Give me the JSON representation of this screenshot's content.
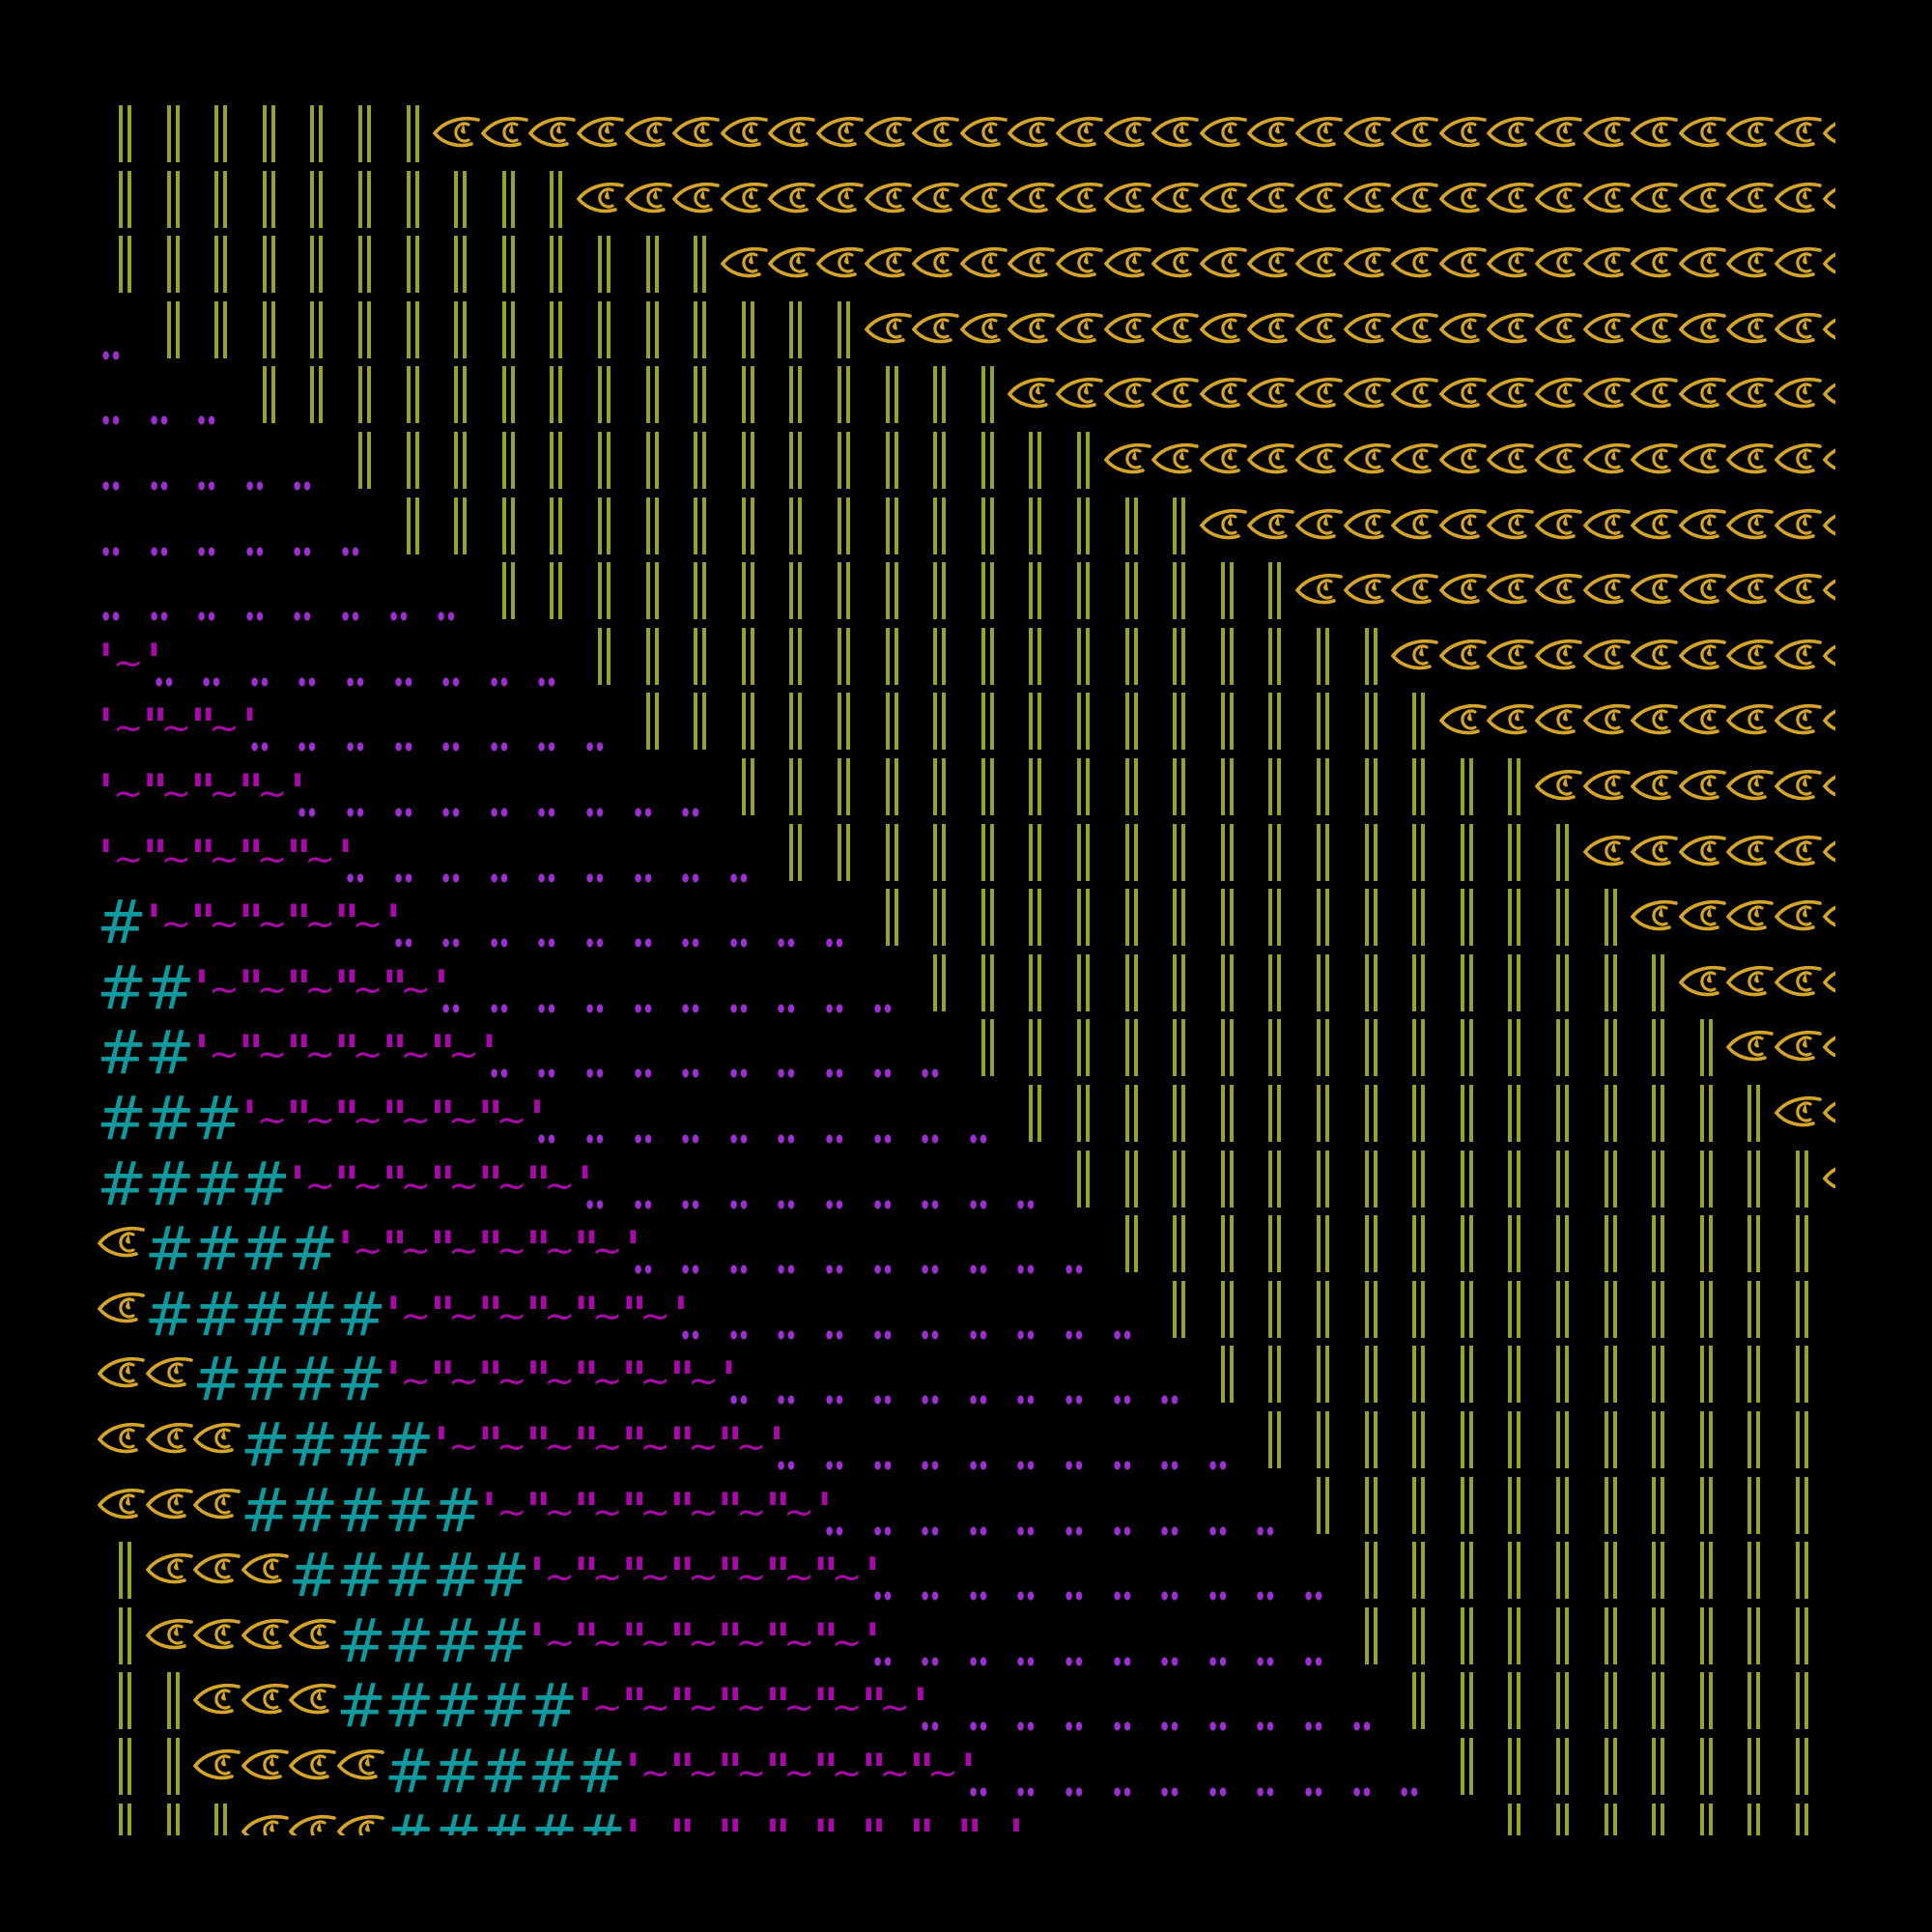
{
  "colors": {
    "background": "#000000",
    "double_bar": "#9aa22a",
    "two_dot": "#9b2fd0",
    "hash": "#0e9a9e",
    "quote_tilde": "#a80aa8",
    "eye": "#d4a52a"
  },
  "icons": {
    "👁": "eye-icon"
  },
  "rows": [
    [
      {
        "t": "‖ ",
        "n": 7
      },
      {
        "t": "👁",
        "n": 30
      }
    ],
    [
      {
        "t": "‖ ",
        "n": 10
      },
      {
        "t": "👁",
        "n": 27
      }
    ],
    [
      {
        "t": "‖ ",
        "n": 13
      },
      {
        "t": "👁",
        "n": 24
      }
    ],
    [
      {
        "t": "‥ ",
        "n": 1
      },
      {
        "t": "‖ ",
        "n": 15
      },
      {
        "t": "👁",
        "n": 21
      }
    ],
    [
      {
        "t": "‥ ",
        "n": 3
      },
      {
        "t": "‖ ",
        "n": 16
      },
      {
        "t": "👁",
        "n": 18
      }
    ],
    [
      {
        "t": "‥ ",
        "n": 5
      },
      {
        "t": "‖ ",
        "n": 16
      },
      {
        "t": "👁",
        "n": 16
      }
    ],
    [
      {
        "t": "‥ ",
        "n": 6
      },
      {
        "t": "‖ ",
        "n": 17
      },
      {
        "t": "👁",
        "n": 14
      }
    ],
    [
      {
        "t": "‥ ",
        "n": 8
      },
      {
        "t": "‖ ",
        "n": 17
      },
      {
        "t": "👁",
        "n": 12
      }
    ],
    [
      {
        "t": "'~'",
        "n": 1
      },
      {
        "t": "‥ ",
        "n": 9
      },
      {
        "t": "‖ ",
        "n": 17
      },
      {
        "t": "👁",
        "n": 10
      }
    ],
    [
      {
        "t": "'~\"~\"~'",
        "n": 1
      },
      {
        "t": "‥ ",
        "n": 8
      },
      {
        "t": "‖ ",
        "n": 17
      },
      {
        "t": "👁",
        "n": 9
      }
    ],
    [
      {
        "t": "'~\"~\"~\"~'",
        "n": 1
      },
      {
        "t": "‥ ",
        "n": 9
      },
      {
        "t": "‖ ",
        "n": 17
      },
      {
        "t": "👁",
        "n": 7
      }
    ],
    [
      {
        "t": "'~\"~\"~\"~\"~'",
        "n": 1
      },
      {
        "t": "‥ ",
        "n": 9
      },
      {
        "t": "‖ ",
        "n": 17
      },
      {
        "t": "👁",
        "n": 6
      }
    ],
    [
      {
        "t": "# ",
        "n": 1
      },
      {
        "t": "'~\"~\"~\"~\"~'",
        "n": 1
      },
      {
        "t": "‥ ",
        "n": 10
      },
      {
        "t": "‖ ",
        "n": 16
      },
      {
        "t": "👁",
        "n": 5
      }
    ],
    [
      {
        "t": "# ",
        "n": 2
      },
      {
        "t": "'~\"~\"~\"~\"~'",
        "n": 1
      },
      {
        "t": "‥ ",
        "n": 10
      },
      {
        "t": "‖ ",
        "n": 16
      },
      {
        "t": "👁",
        "n": 4
      }
    ],
    [
      {
        "t": "# ",
        "n": 2
      },
      {
        "t": "'~\"~\"~\"~\"~\"~'",
        "n": 1
      },
      {
        "t": "‥ ",
        "n": 10
      },
      {
        "t": "‖ ",
        "n": 16
      },
      {
        "t": "👁",
        "n": 3
      }
    ],
    [
      {
        "t": "# ",
        "n": 3
      },
      {
        "t": "'~\"~\"~\"~\"~\"~'",
        "n": 1
      },
      {
        "t": "‥ ",
        "n": 10
      },
      {
        "t": "‖ ",
        "n": 16
      },
      {
        "t": "👁",
        "n": 2
      }
    ],
    [
      {
        "t": "# ",
        "n": 4
      },
      {
        "t": "'~\"~\"~\"~\"~\"~'",
        "n": 1
      },
      {
        "t": "‥ ",
        "n": 10
      },
      {
        "t": "‖ ",
        "n": 16
      },
      {
        "t": "👁",
        "n": 1
      }
    ],
    [
      {
        "t": "👁",
        "n": 1
      },
      {
        "t": "# ",
        "n": 4
      },
      {
        "t": "'~\"~\"~\"~\"~\"~'",
        "n": 1
      },
      {
        "t": "‥ ",
        "n": 10
      },
      {
        "t": "‖ ",
        "n": 15
      }
    ],
    [
      {
        "t": "👁",
        "n": 1
      },
      {
        "t": "# ",
        "n": 5
      },
      {
        "t": "'~\"~\"~\"~\"~\"~'",
        "n": 1
      },
      {
        "t": "‥ ",
        "n": 10
      },
      {
        "t": "‖ ",
        "n": 14
      }
    ],
    [
      {
        "t": "👁",
        "n": 2
      },
      {
        "t": "# ",
        "n": 4
      },
      {
        "t": "'~\"~\"~\"~\"~\"~\"~'",
        "n": 1
      },
      {
        "t": "‥ ",
        "n": 10
      },
      {
        "t": "‖ ",
        "n": 13
      }
    ],
    [
      {
        "t": "👁",
        "n": 3
      },
      {
        "t": "# ",
        "n": 4
      },
      {
        "t": "'~\"~\"~\"~\"~\"~\"~'",
        "n": 1
      },
      {
        "t": "‥ ",
        "n": 10
      },
      {
        "t": "‖ ",
        "n": 12
      }
    ],
    [
      {
        "t": "👁",
        "n": 3
      },
      {
        "t": "# ",
        "n": 5
      },
      {
        "t": "'~\"~\"~\"~\"~\"~\"~'",
        "n": 1
      },
      {
        "t": "‥ ",
        "n": 10
      },
      {
        "t": "‖ ",
        "n": 11
      }
    ],
    [
      {
        "t": "‖",
        "n": 1
      },
      {
        "t": "👁",
        "n": 3
      },
      {
        "t": "# ",
        "n": 5
      },
      {
        "t": "'~\"~\"~\"~\"~\"~\"~'",
        "n": 1
      },
      {
        "t": "‥ ",
        "n": 10
      },
      {
        "t": "‖ ",
        "n": 10
      }
    ],
    [
      {
        "t": "‖",
        "n": 1
      },
      {
        "t": "👁",
        "n": 4
      },
      {
        "t": "# ",
        "n": 4
      },
      {
        "t": "'~\"~\"~\"~\"~\"~\"~'",
        "n": 1
      },
      {
        "t": "‥ ",
        "n": 10
      },
      {
        "t": "‖ ",
        "n": 10
      }
    ],
    [
      {
        "t": "‖ ",
        "n": 1
      },
      {
        "t": "‖",
        "n": 1
      },
      {
        "t": "👁",
        "n": 3
      },
      {
        "t": "# ",
        "n": 5
      },
      {
        "t": "'~\"~\"~\"~\"~\"~\"~'",
        "n": 1
      },
      {
        "t": "‥ ",
        "n": 10
      },
      {
        "t": "‖ ",
        "n": 9
      }
    ],
    [
      {
        "t": "‖ ",
        "n": 1
      },
      {
        "t": "‖",
        "n": 1
      },
      {
        "t": "👁",
        "n": 4
      },
      {
        "t": "# ",
        "n": 5
      },
      {
        "t": "'~\"~\"~\"~\"~\"~\"~'",
        "n": 1
      },
      {
        "t": "‥ ",
        "n": 10
      },
      {
        "t": "‖ ",
        "n": 8
      }
    ],
    [
      {
        "t": "‖ ",
        "n": 2
      },
      {
        "t": "‖",
        "n": 1
      },
      {
        "t": "👁",
        "n": 3
      },
      {
        "t": "# ",
        "n": 5
      },
      {
        "t": "'~\"~\"~\"~\"~\"~\"~\"~'",
        "n": 1
      },
      {
        "t": "‥ ",
        "n": 10
      },
      {
        "t": "‖ ",
        "n": 7
      }
    ]
  ]
}
